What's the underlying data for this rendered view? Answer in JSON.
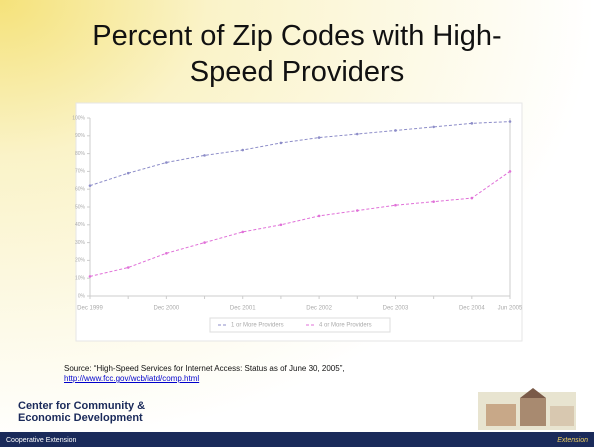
{
  "slide": {
    "title": "Percent of Zip Codes with High-Speed Providers",
    "source": "Source: “High-Speed Services for Internet Access: Status as of June 30, 2005”, ",
    "source_link": "http://www.fcc.gov/wcb/iatd/comp.html",
    "logo_line1": "Center for Community &",
    "logo_line2": "Economic Development",
    "footer_left": "Cooperative Extension",
    "footer_right": "Extension"
  },
  "chart_data": {
    "type": "line",
    "categories": [
      "Dec 1999",
      null,
      "Dec 2000",
      null,
      "Dec 2001",
      null,
      "Dec 2002",
      null,
      "Dec 2003",
      null,
      "Dec 2004",
      "Jun 2005"
    ],
    "series": [
      {
        "name": "1 or More Providers",
        "color": "#8c8cc8",
        "values": [
          62,
          69,
          75,
          79,
          82,
          86,
          89,
          91,
          93,
          95,
          97,
          98
        ]
      },
      {
        "name": "4 or More Providers",
        "color": "#e070d8",
        "values": [
          11,
          16,
          24,
          30,
          36,
          40,
          45,
          48,
          51,
          53,
          55,
          70
        ]
      }
    ],
    "ylim": [
      0,
      100
    ],
    "yticks": [
      {
        "value": 0,
        "label": "0%"
      },
      {
        "value": 10,
        "label": "10%"
      },
      {
        "value": 20,
        "label": "20%"
      },
      {
        "value": 30,
        "label": "30%"
      },
      {
        "value": 40,
        "label": "40%"
      },
      {
        "value": 50,
        "label": "50%"
      },
      {
        "value": 60,
        "label": "60%"
      },
      {
        "value": 70,
        "label": "70%"
      },
      {
        "value": 80,
        "label": "80%"
      },
      {
        "value": 90,
        "label": "90%"
      },
      {
        "value": 100,
        "label": "100%"
      }
    ],
    "legend": "bottom"
  }
}
